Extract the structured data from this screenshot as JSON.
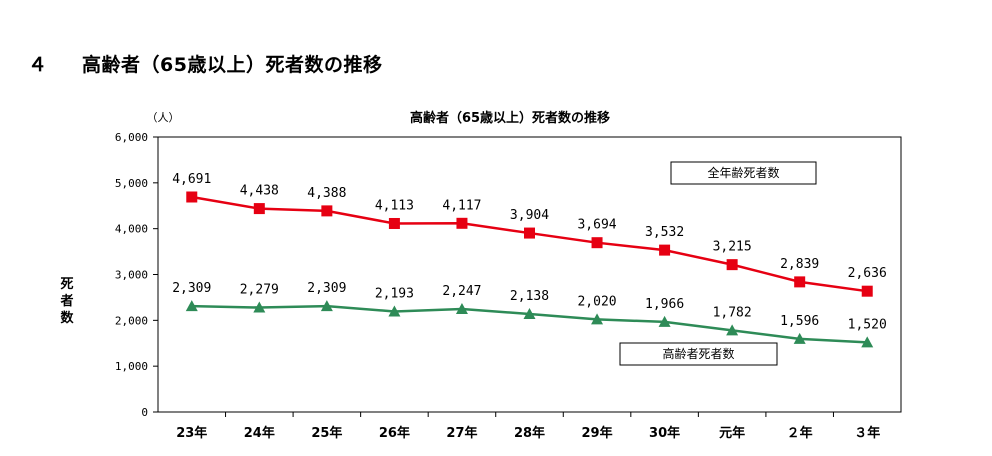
{
  "heading": {
    "number": "４",
    "text": "高齢者（65歳以上）死者数の推移"
  },
  "chart_data": {
    "type": "line",
    "title": "高齢者（65歳以上）死者数の推移",
    "unit_label": "（人）",
    "ylabel": "死者数",
    "categories": [
      "23年",
      "24年",
      "25年",
      "26年",
      "27年",
      "28年",
      "29年",
      "30年",
      "元年",
      "２年",
      "３年"
    ],
    "ylim": [
      0,
      6000
    ],
    "yticks": [
      0,
      1000,
      2000,
      3000,
      4000,
      5000,
      6000
    ],
    "ytick_labels": [
      "0",
      "1,000",
      "2,000",
      "3,000",
      "4,000",
      "5,000",
      "6,000"
    ],
    "grid": false,
    "series": [
      {
        "name": "全年齢死者数",
        "color": "#e60012",
        "marker": "square",
        "values": [
          4691,
          4438,
          4388,
          4113,
          4117,
          3904,
          3694,
          3532,
          3215,
          2839,
          2636
        ],
        "labels": [
          "4,691",
          "4,438",
          "4,388",
          "4,113",
          "4,117",
          "3,904",
          "3,694",
          "3,532",
          "3,215",
          "2,839",
          "2,636"
        ]
      },
      {
        "name": "高齢者死者数",
        "color": "#2e8b57",
        "marker": "triangle",
        "values": [
          2309,
          2279,
          2309,
          2193,
          2247,
          2138,
          2020,
          1966,
          1782,
          1596,
          1520
        ],
        "labels": [
          "2,309",
          "2,279",
          "2,309",
          "2,193",
          "2,247",
          "2,138",
          "2,020",
          "1,966",
          "1,782",
          "1,596",
          "1,520"
        ]
      }
    ]
  }
}
